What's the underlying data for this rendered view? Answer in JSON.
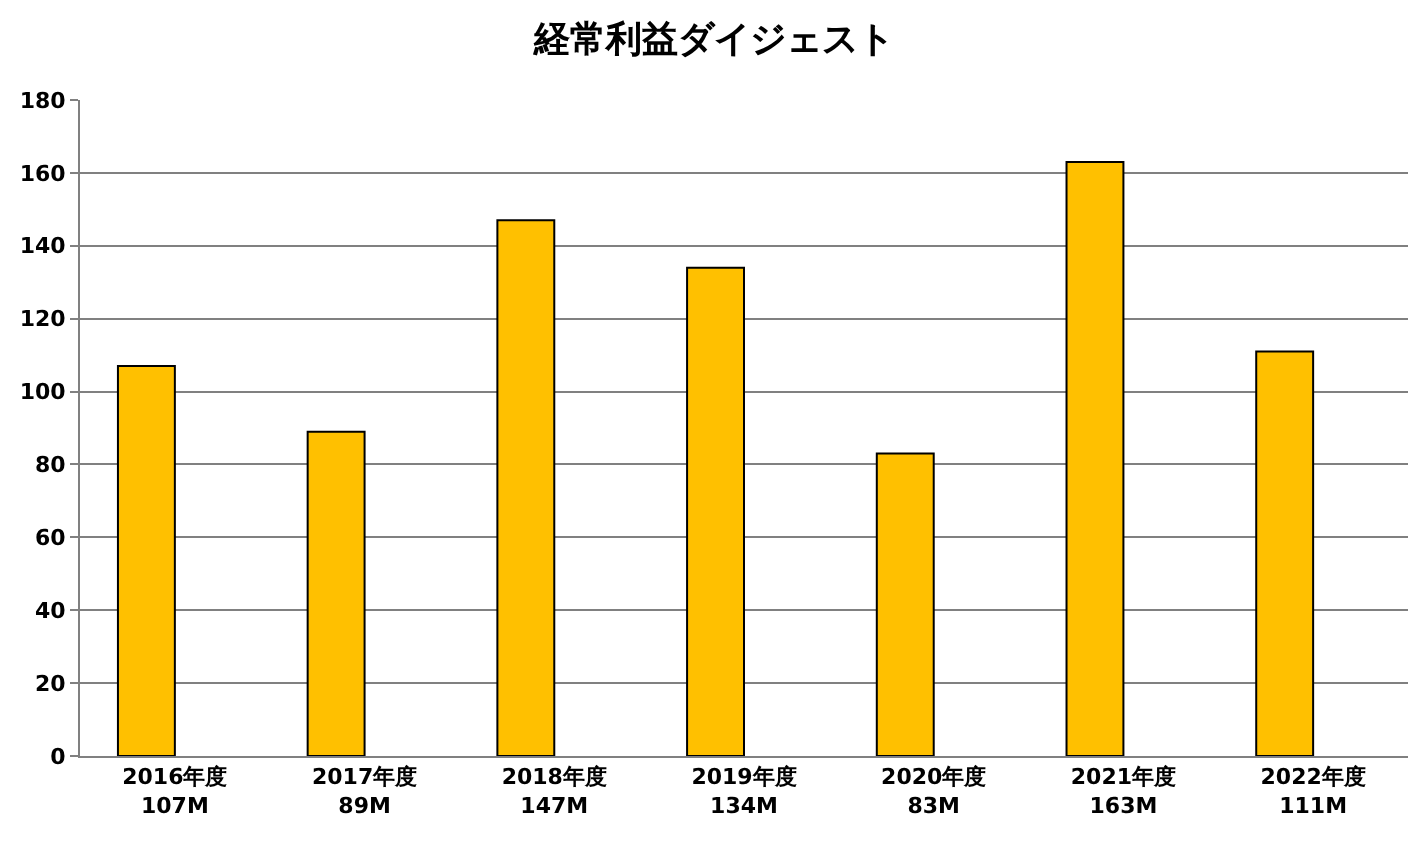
{
  "chart_data": {
    "type": "bar",
    "title": "経常利益ダイジェスト",
    "categories": [
      "2016年度\n107M",
      "2017年度\n89M",
      "2018年度\n147M",
      "2019年度\n134M",
      "2020年度\n83M",
      "2021年度\n163M",
      "2022年度\n111M"
    ],
    "values": [
      107,
      89,
      147,
      134,
      83,
      163,
      111
    ],
    "color": "#ffc000",
    "ylim": [
      0,
      180
    ],
    "yticks": [
      0,
      20,
      40,
      60,
      80,
      100,
      120,
      140,
      160,
      180
    ],
    "grid": "y"
  }
}
